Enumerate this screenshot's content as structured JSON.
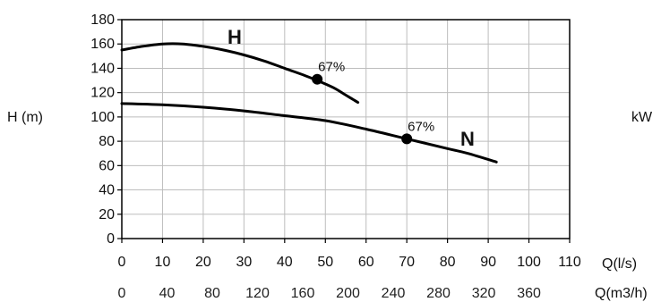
{
  "chart_data": {
    "type": "line",
    "grid": true,
    "x": {
      "label": "Q(l/s)",
      "lim": [
        0,
        110
      ],
      "ticks": [
        0,
        10,
        20,
        30,
        40,
        50,
        60,
        70,
        80,
        90,
        100,
        110
      ]
    },
    "x_secondary": {
      "label": "Q(m3/h)",
      "ticks": [
        0,
        40,
        80,
        120,
        160,
        200,
        240,
        280,
        320,
        360
      ]
    },
    "y": {
      "label": "H (m)",
      "lim": [
        0,
        180
      ],
      "ticks": [
        0,
        20,
        40,
        60,
        80,
        100,
        120,
        140,
        160,
        180
      ]
    },
    "y_right_label": "kW",
    "series": [
      {
        "name": "H",
        "x": [
          0,
          5,
          10,
          15,
          20,
          25,
          30,
          35,
          40,
          45,
          48,
          52,
          55,
          58
        ],
        "y": [
          155,
          158,
          160,
          160,
          158,
          155,
          151,
          146,
          140,
          134,
          130,
          124,
          118,
          112
        ]
      },
      {
        "name": "N",
        "x": [
          0,
          10,
          20,
          30,
          40,
          50,
          60,
          70,
          80,
          85,
          92
        ],
        "y": [
          111,
          110,
          108,
          105,
          101,
          97,
          90,
          82,
          74,
          70,
          63
        ]
      }
    ],
    "points": [
      {
        "series": "H",
        "x": 48,
        "y": 131,
        "label": "67%"
      },
      {
        "series": "N",
        "x": 70,
        "y": 82,
        "label": "67%"
      }
    ]
  }
}
